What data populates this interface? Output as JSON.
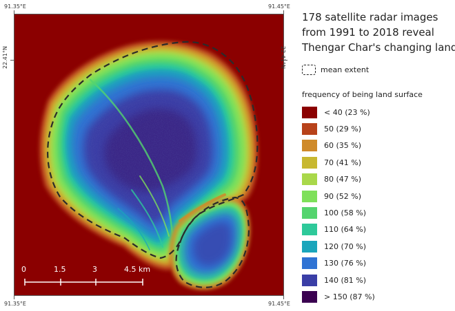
{
  "map": {
    "background_color": "#8b0000",
    "extent_line_color": "#2b2b2b",
    "coordinates": {
      "top_left": "91.35°E",
      "top_right": "91.45°E",
      "bottom_left": "91.35°E",
      "bottom_right": "91.45°E",
      "left_side": "22.41°N",
      "right_side": "22.41°N"
    },
    "scale_bar": {
      "labels": [
        "0",
        "1.5",
        "3",
        "4.5 km"
      ],
      "color": "#ffffff"
    }
  },
  "title": {
    "lines": [
      "178 satellite radar images",
      "from 1991 to 2018 reveal",
      "Thengar Char's changing land"
    ]
  },
  "extent_legend": {
    "label": "mean extent",
    "icon": "dashed-rectangle-icon"
  },
  "frequency_legend": {
    "heading": "frequency of being land surface",
    "items": [
      {
        "label": "< 40 (23 %)",
        "color": "#8b0000"
      },
      {
        "label": "50 (29 %)",
        "color": "#b8421a"
      },
      {
        "label": "60 (35 %)",
        "color": "#cf8a2a"
      },
      {
        "label": "70 (41 %)",
        "color": "#c8b830"
      },
      {
        "label": "80 (47 %)",
        "color": "#a9d84a"
      },
      {
        "label": "90 (52 %)",
        "color": "#7ee05a"
      },
      {
        "label": "100 (58 %)",
        "color": "#54d46e"
      },
      {
        "label": "110 (64 %)",
        "color": "#2ec99a"
      },
      {
        "label": "120 (70 %)",
        "color": "#1aa5bb"
      },
      {
        "label": "130 (76 %)",
        "color": "#2f73d4"
      },
      {
        "label": "140 (81 %)",
        "color": "#3a3ea6"
      },
      {
        "label": "> 150 (87 %)",
        "color": "#3a0050"
      }
    ]
  }
}
